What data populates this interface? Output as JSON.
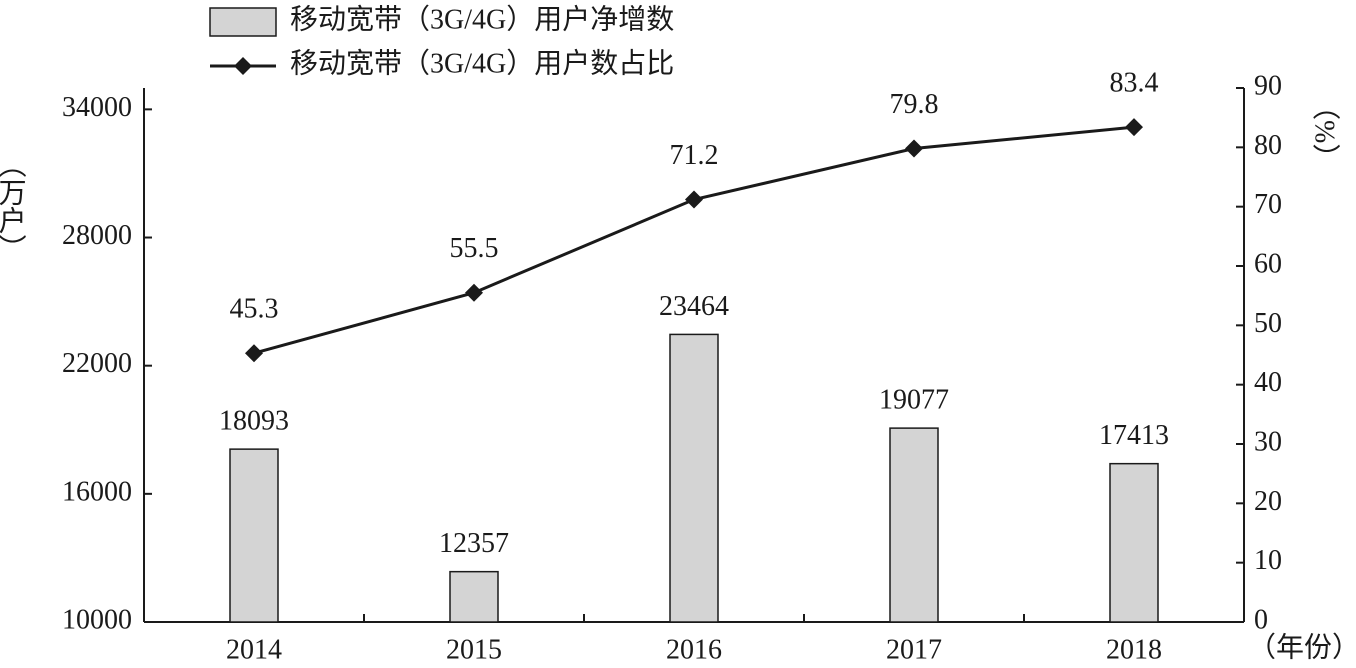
{
  "chart_data": {
    "type": "bar_line",
    "categories": [
      "2014",
      "2015",
      "2016",
      "2017",
      "2018"
    ],
    "series": [
      {
        "name": "移动宽带（3G/4G）用户净增数",
        "type": "bar",
        "color": "#d4d4d4",
        "values": [
          18093,
          12357,
          23464,
          19077,
          17413
        ]
      },
      {
        "name": "移动宽带（3G/4G）用户数占比",
        "type": "line",
        "axis": "y2",
        "color": "#1a1a1a",
        "values": [
          45.3,
          55.5,
          71.2,
          79.8,
          83.4
        ]
      }
    ],
    "y_label": "（万户）",
    "y2_label": "（%）",
    "x_label": "（年份）",
    "ylim": [
      10000,
      35000
    ],
    "yticks": [
      10000,
      16000,
      22000,
      28000,
      34000
    ],
    "y2lim": [
      0,
      90
    ],
    "y2ticks": [
      0,
      10,
      20,
      30,
      40,
      50,
      60,
      70,
      80,
      90
    ]
  }
}
